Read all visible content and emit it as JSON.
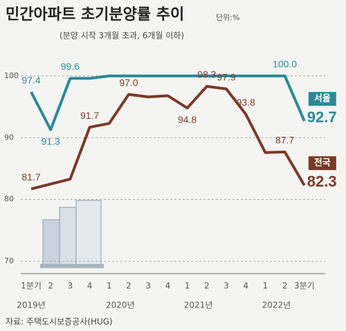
{
  "chart_data": {
    "type": "line",
    "title": "민간아파트 초기분양률 추이",
    "unit": "단위:%",
    "subtitle": "(분양 시작 3개월 초과, 6개월 이하)",
    "source": "자료: 주택도시보증공사(HUG)",
    "categories": [
      "1분기",
      "2",
      "3",
      "4",
      "1",
      "2",
      "3",
      "4",
      "1",
      "2",
      "3",
      "4",
      "1",
      "2",
      "3분기"
    ],
    "years": [
      "2019년",
      "2020년",
      "2021년",
      "2022년"
    ],
    "series": [
      {
        "name": "서울",
        "color": "#2b8a97",
        "values": [
          97.4,
          91.3,
          99.6,
          99.6,
          100,
          100,
          100,
          100,
          100,
          100,
          100,
          100,
          100,
          100,
          92.7
        ],
        "value_labels": [
          "97.4",
          "91.3",
          "99.6",
          null,
          null,
          null,
          null,
          null,
          null,
          null,
          null,
          null,
          null,
          "100.0",
          "92.7"
        ]
      },
      {
        "name": "전국",
        "color": "#7b3a26",
        "values": [
          81.7,
          82.5,
          83.3,
          91.7,
          92.3,
          97.0,
          96.6,
          96.8,
          94.8,
          98.3,
          97.9,
          93.8,
          87.6,
          87.7,
          82.3
        ],
        "value_labels": [
          "81.7",
          null,
          null,
          "91.7",
          null,
          "97.0",
          null,
          null,
          "94.8",
          "98.3",
          "97.9",
          "93.8",
          null,
          "87.7",
          "82.3"
        ]
      }
    ],
    "ylim": [
      68,
      103
    ],
    "yticks": [
      70,
      80,
      90,
      100
    ],
    "grid": true
  }
}
